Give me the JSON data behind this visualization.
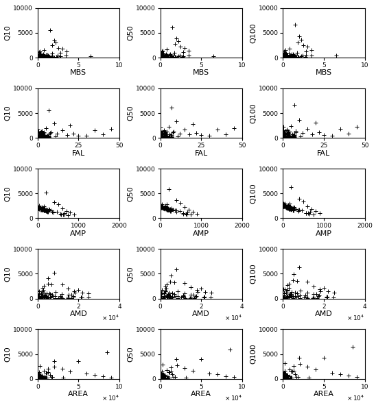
{
  "rows": [
    "MBS",
    "FAL",
    "AMP",
    "AMD",
    "AREA"
  ],
  "cols": [
    "Q10",
    "Q50",
    "Q100"
  ],
  "xlims": {
    "MBS": [
      0,
      10
    ],
    "FAL": [
      0,
      50
    ],
    "AMP": [
      0,
      2000
    ],
    "AMD": [
      0,
      40000
    ],
    "AREA": [
      0,
      100000
    ]
  },
  "ylim": [
    0,
    10000
  ],
  "xticks": {
    "MBS": [
      0,
      5,
      10
    ],
    "FAL": [
      0,
      25,
      50
    ],
    "AMP": [
      0,
      1000,
      2000
    ],
    "AMD": [
      0,
      20000,
      40000
    ],
    "AREA": [
      0,
      50000,
      100000
    ]
  },
  "use_sci_x": {
    "MBS": false,
    "FAL": false,
    "AMP": false,
    "AMD": true,
    "AREA": true
  },
  "yticks": [
    0,
    5000,
    10000
  ],
  "marker": "+",
  "markersize": 4,
  "color": "black",
  "figsize": [
    5.48,
    5.88
  ],
  "dpi": 100
}
